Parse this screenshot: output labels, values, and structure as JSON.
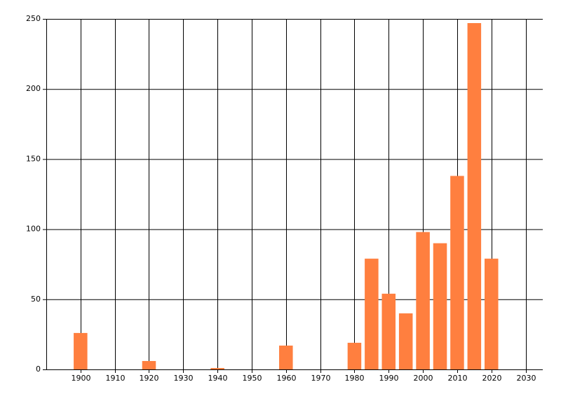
{
  "chart_data": {
    "type": "bar",
    "x": [
      1900,
      1920,
      1940,
      1960,
      1980,
      1985,
      1990,
      1995,
      2000,
      2005,
      2010,
      2015,
      2020
    ],
    "values": [
      26,
      6,
      1,
      17,
      19,
      79,
      54,
      40,
      98,
      90,
      138,
      247,
      79
    ],
    "color": "#ff7f3f",
    "xlim": [
      1890,
      2035
    ],
    "xticks": [
      1900,
      1910,
      1920,
      1930,
      1940,
      1950,
      1960,
      1970,
      1980,
      1990,
      2000,
      2010,
      2020,
      2030
    ],
    "ylim": [
      0,
      250
    ],
    "yticks": [
      0,
      50,
      100,
      150,
      200,
      250
    ],
    "grid": true
  }
}
